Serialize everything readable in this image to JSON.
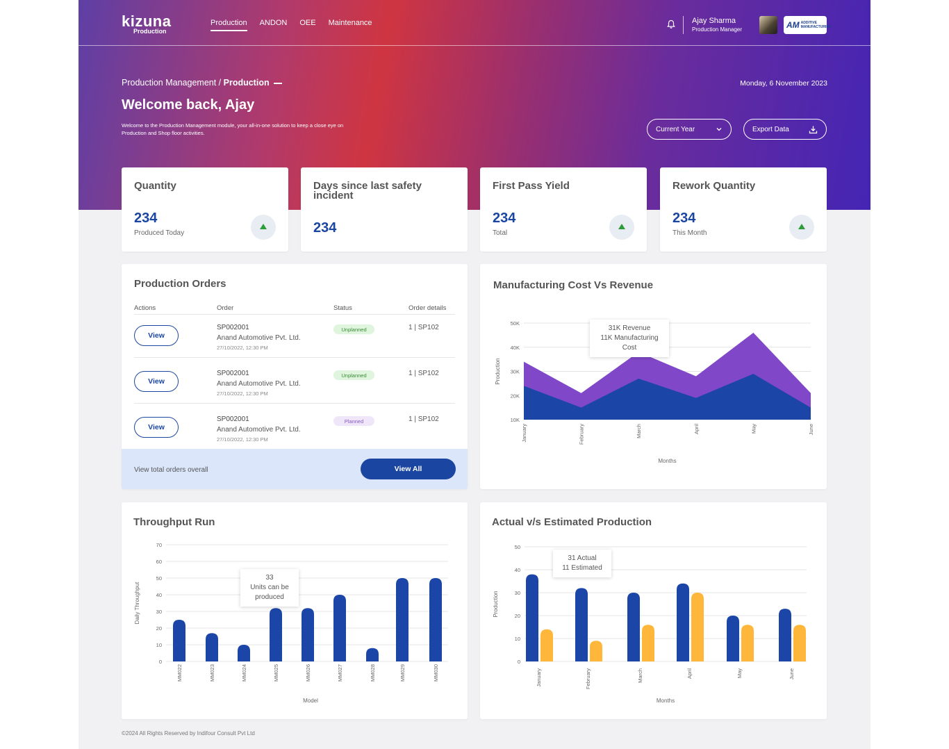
{
  "brand": {
    "name": "kizuna",
    "sub": "Production"
  },
  "nav": [
    {
      "label": "Production",
      "active": true
    },
    {
      "label": "ANDON",
      "active": false
    },
    {
      "label": "OEE",
      "active": false
    },
    {
      "label": "Maintenance",
      "active": false
    }
  ],
  "user": {
    "name": "Ajay Sharma",
    "role": "Production Manager"
  },
  "company_logo": {
    "mark": "AM",
    "text": "ADDITIVE MANUFACTURING"
  },
  "breadcrumb": {
    "parent": "Production Management",
    "separator": " / ",
    "current": "Production"
  },
  "welcome": "Welcome back,  Ajay",
  "intro": "Welcome to the Production Management module, your all-in-one solution to keep a close eye on Production and Shop floor activities.",
  "date": "Monday, 6 November 2023",
  "filters": {
    "period": "Current Year",
    "export": "Export Data"
  },
  "kpis": [
    {
      "title": "Quantity",
      "value": "234",
      "sub": "Produced Today",
      "trend": "up"
    },
    {
      "title": "Days since last safety incident",
      "value": "234",
      "sub": "",
      "trend": ""
    },
    {
      "title": "First Pass Yield",
      "value": "234",
      "sub": "Total",
      "trend": "up"
    },
    {
      "title": "Rework Quantity",
      "value": "234",
      "sub": "This Month",
      "trend": "up"
    }
  ],
  "orders": {
    "title": "Production Orders",
    "columns": [
      "Actions",
      "Order",
      "Status",
      "Order details"
    ],
    "rows": [
      {
        "action": "View",
        "id": "SP002001",
        "company": "Anand Automotive Pvt. Ltd.",
        "date": "27/10/2022, 12:30 PM",
        "status": "Unplanned",
        "details": "1 | SP102"
      },
      {
        "action": "View",
        "id": "SP002001",
        "company": "Anand Automotive Pvt. Ltd.",
        "date": "27/10/2022, 12:30 PM",
        "status": "Unplanned",
        "details": "1 | SP102"
      },
      {
        "action": "View",
        "id": "SP002001",
        "company": "Anand Automotive Pvt. Ltd.",
        "date": "27/10/2022, 12:30 PM",
        "status": "Planned",
        "details": "1 | SP102"
      }
    ],
    "footer_text": "View total orders overall",
    "view_all": "View All"
  },
  "chart_data": [
    {
      "type": "area",
      "title": "Manufacturing Cost Vs Revenue",
      "xlabel": "Months",
      "ylabel": "Production",
      "categories": [
        "January",
        "February",
        "March",
        "April",
        "May",
        "June"
      ],
      "yticks": [
        "10K",
        "20K",
        "30K",
        "40K",
        "50K"
      ],
      "ylim": [
        10000,
        50000
      ],
      "series": [
        {
          "values": [
            34000,
            21000,
            38000,
            28000,
            46000,
            21000
          ],
          "color": "#8048c8"
        },
        {
          "values": [
            24000,
            15000,
            27000,
            19000,
            29000,
            15000
          ],
          "color": "#1c45a8"
        }
      ],
      "tooltip": [
        "31K Revenue",
        "11K Manufacturing Cost"
      ]
    },
    {
      "type": "bar",
      "title": "Throughput Run",
      "xlabel": "Model",
      "ylabel": "Daily Throughput",
      "categories": [
        "MM022",
        "MM023",
        "MM024",
        "MM025",
        "MM026",
        "MM027",
        "MM028",
        "MM029",
        "MM030"
      ],
      "yticks": [
        "0",
        "10",
        "20",
        "30",
        "40",
        "50",
        "60",
        "70"
      ],
      "ylim": [
        0,
        70
      ],
      "values": [
        25,
        17,
        10,
        32,
        32,
        40,
        8,
        50,
        50
      ],
      "color": "#1c45a8",
      "tooltip": [
        "33",
        "Units can be produced"
      ]
    },
    {
      "type": "bar",
      "title": "Actual v/s Estimated Production",
      "xlabel": "Months",
      "ylabel": "Production",
      "categories": [
        "January",
        "February",
        "March",
        "April",
        "May",
        "June"
      ],
      "yticks": [
        "0",
        "10",
        "20",
        "30",
        "40",
        "50"
      ],
      "ylim": [
        0,
        50
      ],
      "series": [
        {
          "values": [
            38,
            32,
            30,
            34,
            20,
            23
          ],
          "color": "#1c45a8"
        },
        {
          "values": [
            14,
            9,
            16,
            30,
            16,
            16
          ],
          "color": "#ffb73b"
        }
      ],
      "tooltip": [
        "31 Actual",
        "11 Estimated"
      ]
    }
  ],
  "footer": "©2024 All Rights Reserved by Indifour Consult Pvt Ltd"
}
